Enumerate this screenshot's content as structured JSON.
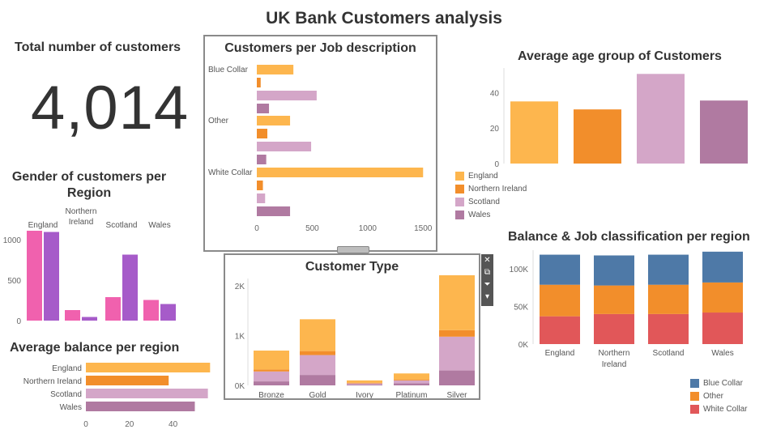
{
  "dashboard": {
    "title": "UK Bank Customers analysis",
    "total_customers": {
      "title": "Total number of customers",
      "value": "4,014"
    }
  },
  "colors": {
    "england": "#FDB64E",
    "northern_ireland": "#F28E2B",
    "scotland": "#D4A6C8",
    "wales": "#B07AA1",
    "gender_pink": "#F061AE",
    "gender_purple": "#A65BC9",
    "blue_collar": "#4E79A7",
    "other": "#F28E2B",
    "white_collar": "#E15759"
  },
  "legends": {
    "region": [
      "England",
      "Northern Ireland",
      "Scotland",
      "Wales"
    ],
    "job": [
      "Blue Collar",
      "Other",
      "White Collar"
    ]
  },
  "toolbar_icons": [
    "close-icon",
    "pop-out-icon",
    "filter-icon",
    "more-options-icon"
  ],
  "chart_data": [
    {
      "id": "gender",
      "type": "bar",
      "title": "Gender of customers per Region",
      "categories": [
        "England",
        "Northern Ireland",
        "Scotland",
        "Wales"
      ],
      "series": [
        {
          "values": [
            1110,
            130,
            290,
            255
          ]
        },
        {
          "values": [
            1095,
            45,
            815,
            205
          ]
        }
      ],
      "ylim": [
        0,
        1150
      ],
      "yticks": [
        "0",
        "500",
        "1000"
      ],
      "ytick_values": [
        0,
        500,
        1000
      ]
    },
    {
      "id": "job",
      "type": "bar",
      "orientation": "horizontal",
      "title": "Customers per Job description",
      "categories": [
        "Blue Collar",
        "Other",
        "White Collar"
      ],
      "series": [
        {
          "name": "England",
          "values": [
            330,
            300,
            1500
          ]
        },
        {
          "name": "Northern Ireland",
          "values": [
            35,
            95,
            55
          ]
        },
        {
          "name": "Scotland",
          "values": [
            540,
            490,
            75
          ]
        },
        {
          "name": "Wales",
          "values": [
            110,
            85,
            300
          ]
        }
      ],
      "xlim": [
        0,
        1520
      ],
      "xticks": [
        "0",
        "500",
        "1000",
        "1500"
      ],
      "xtick_values": [
        0,
        500,
        1000,
        1500
      ]
    },
    {
      "id": "age",
      "type": "bar",
      "title": "Average age group of Customers",
      "categories": [
        "England",
        "Northern Ireland",
        "Scotland",
        "Wales"
      ],
      "values": [
        35,
        30.5,
        50.5,
        35.5
      ],
      "ylim": [
        0,
        52
      ],
      "yticks": [
        "0",
        "20",
        "40"
      ],
      "ytick_values": [
        0,
        20,
        40
      ]
    },
    {
      "id": "avg_balance",
      "type": "bar",
      "orientation": "horizontal",
      "title": "Average balance per region",
      "categories": [
        "England",
        "Northern Ireland",
        "Scotland",
        "Wales"
      ],
      "values": [
        57,
        38,
        56,
        50
      ],
      "xlim": [
        0,
        58
      ],
      "xticks": [
        "0",
        "20",
        "40"
      ],
      "xtick_values": [
        0,
        20,
        40
      ]
    },
    {
      "id": "customer_type",
      "type": "bar",
      "stacked": true,
      "title": "Customer Type",
      "categories": [
        "Bronze",
        "Gold",
        "Ivory",
        "Platinum",
        "Silver"
      ],
      "series": [
        {
          "name": "England",
          "values": [
            380,
            640,
            50,
            120,
            1240
          ]
        },
        {
          "name": "Northern Ireland",
          "values": [
            40,
            80,
            10,
            20,
            130
          ]
        },
        {
          "name": "Scotland",
          "values": [
            200,
            400,
            20,
            60,
            680
          ]
        },
        {
          "name": "Wales",
          "values": [
            80,
            210,
            20,
            40,
            300
          ]
        }
      ],
      "ylim": [
        0,
        2150
      ],
      "yticks": [
        "0K",
        "1K",
        "2K"
      ],
      "ytick_values": [
        0,
        1000,
        2000
      ]
    },
    {
      "id": "balance_job",
      "type": "bar",
      "stacked": true,
      "title": "Balance & Job classification per region",
      "categories": [
        "England",
        "Northern Ireland",
        "Scotland",
        "Wales"
      ],
      "category_lines": [
        [
          "England"
        ],
        [
          "Northern",
          "Ireland"
        ],
        [
          "Scotland"
        ],
        [
          "Wales"
        ]
      ],
      "series": [
        {
          "name": "White Collar",
          "values": [
            37000,
            40000,
            40000,
            42000
          ]
        },
        {
          "name": "Other",
          "values": [
            42000,
            38000,
            39000,
            40000
          ]
        },
        {
          "name": "Blue Collar",
          "values": [
            40000,
            40000,
            40000,
            41000
          ]
        }
      ],
      "ylim": [
        0,
        125000
      ],
      "yticks": [
        "0K",
        "50K",
        "100K"
      ],
      "ytick_values": [
        0,
        50000,
        100000
      ]
    }
  ]
}
